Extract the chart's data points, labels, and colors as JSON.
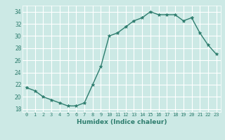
{
  "x": [
    0,
    1,
    2,
    3,
    4,
    5,
    6,
    7,
    8,
    9,
    10,
    11,
    12,
    13,
    14,
    15,
    16,
    17,
    18,
    19,
    20,
    21,
    22,
    23
  ],
  "y": [
    21.5,
    21.0,
    20.0,
    19.5,
    19.0,
    18.5,
    18.5,
    19.0,
    22.0,
    25.0,
    30.0,
    30.5,
    31.5,
    32.5,
    33.0,
    34.0,
    33.5,
    33.5,
    33.5,
    32.5,
    33.0,
    30.5,
    28.5,
    27.0
  ],
  "xlabel": "Humidex (Indice chaleur)",
  "ylim": [
    17.5,
    35.0
  ],
  "xlim": [
    -0.5,
    23.5
  ],
  "yticks": [
    18,
    20,
    22,
    24,
    26,
    28,
    30,
    32,
    34
  ],
  "xtick_labels": [
    "0",
    "1",
    "2",
    "3",
    "4",
    "5",
    "6",
    "7",
    "8",
    "9",
    "10",
    "11",
    "12",
    "13",
    "14",
    "15",
    "16",
    "17",
    "18",
    "19",
    "20",
    "21",
    "22",
    "23"
  ],
  "line_color": "#2e7d6e",
  "marker_color": "#2e7d6e",
  "bg_color": "#cce9e5",
  "grid_color": "#ffffff",
  "tick_color": "#2e7d6e"
}
